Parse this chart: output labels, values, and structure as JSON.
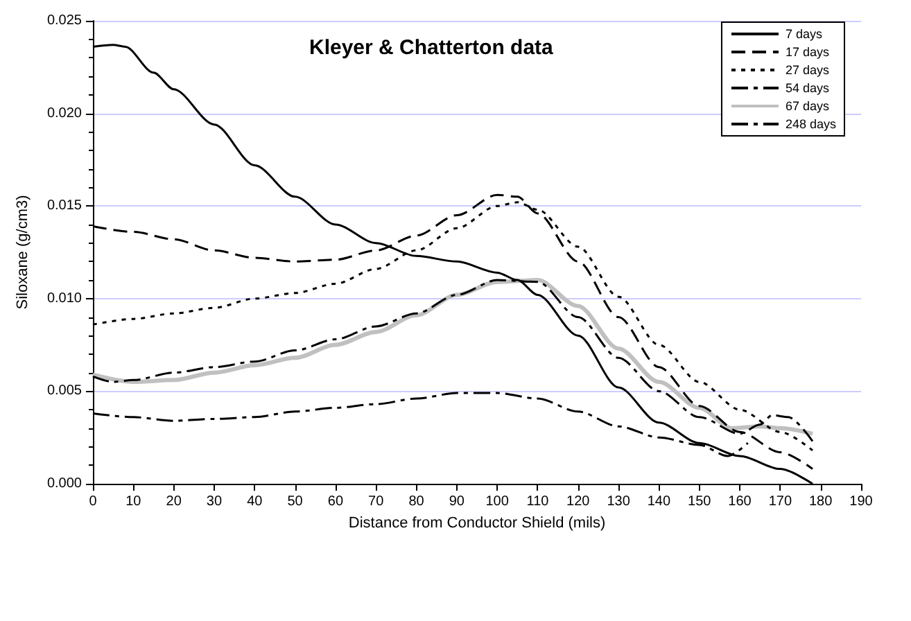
{
  "chart_data": {
    "type": "line",
    "title": "Kleyer & Chatterton data",
    "xlabel": "Distance from Conductor Shield (mils)",
    "ylabel": "Siloxane (g/cm3)",
    "xlim": [
      0,
      190
    ],
    "xticks": [
      0,
      10,
      20,
      30,
      40,
      50,
      60,
      70,
      80,
      90,
      100,
      110,
      120,
      130,
      140,
      150,
      160,
      170,
      180,
      190
    ],
    "ylim": [
      0,
      0.025
    ],
    "yticks": [
      {
        "value": 0,
        "label": "0.000"
      },
      {
        "value": 0.005,
        "label": "0.005"
      },
      {
        "value": 0.01,
        "label": "0.010"
      },
      {
        "value": 0.015,
        "label": "0.015"
      },
      {
        "value": 0.02,
        "label": "0.020"
      },
      {
        "value": 0.025,
        "label": "0.025"
      }
    ],
    "grid": "y",
    "legend": "top right",
    "marker": "none",
    "series": [
      {
        "name": "7 days",
        "color": "#000000",
        "line_style": "solid",
        "x": [
          0,
          5,
          8,
          15,
          20,
          30,
          40,
          50,
          60,
          70,
          80,
          90,
          100,
          105,
          110,
          120,
          130,
          140,
          150,
          160,
          170,
          178
        ],
        "values": [
          0.0236,
          0.0237,
          0.0236,
          0.0222,
          0.0213,
          0.0194,
          0.0172,
          0.0155,
          0.014,
          0.013,
          0.0123,
          0.012,
          0.0114,
          0.011,
          0.0102,
          0.008,
          0.0052,
          0.0033,
          0.0022,
          0.0015,
          0.0008,
          0
        ]
      },
      {
        "name": "17 days",
        "color": "#000000",
        "line_style": "dashed",
        "x": [
          0,
          10,
          20,
          30,
          40,
          50,
          60,
          70,
          80,
          90,
          100,
          105,
          110,
          120,
          130,
          140,
          150,
          160,
          170,
          178
        ],
        "values": [
          0.0139,
          0.0136,
          0.0132,
          0.0126,
          0.0122,
          0.012,
          0.0121,
          0.0126,
          0.0134,
          0.0145,
          0.0156,
          0.0155,
          0.0146,
          0.012,
          0.009,
          0.0063,
          0.0042,
          0.0028,
          0.0017,
          0.0008
        ]
      },
      {
        "name": "27 days",
        "color": "#000000",
        "line_style": "dotted",
        "x": [
          0,
          10,
          20,
          30,
          40,
          50,
          60,
          70,
          80,
          90,
          100,
          105,
          110,
          120,
          130,
          140,
          150,
          160,
          170,
          178
        ],
        "values": [
          0.0086,
          0.0089,
          0.0092,
          0.0095,
          0.01,
          0.0103,
          0.0108,
          0.0116,
          0.0126,
          0.0138,
          0.015,
          0.0152,
          0.0148,
          0.0128,
          0.0101,
          0.0075,
          0.0055,
          0.004,
          0.0028,
          0.0018
        ]
      },
      {
        "name": "54 days",
        "color": "#000000",
        "line_style": "dash-dot",
        "x": [
          0,
          5,
          10,
          20,
          30,
          40,
          50,
          60,
          70,
          80,
          90,
          100,
          110,
          120,
          130,
          140,
          150,
          160,
          165,
          168,
          172,
          178
        ],
        "values": [
          0.0058,
          0.0055,
          0.0056,
          0.006,
          0.0063,
          0.0066,
          0.0072,
          0.0078,
          0.0085,
          0.0092,
          0.0102,
          0.011,
          0.0109,
          0.009,
          0.0068,
          0.005,
          0.0036,
          0.0027,
          0.0032,
          0.0037,
          0.0036,
          0.0023
        ]
      },
      {
        "name": "67 days",
        "color": "#c0c0c0",
        "line_style": "solid",
        "x": [
          0,
          10,
          20,
          30,
          40,
          50,
          60,
          70,
          80,
          90,
          100,
          110,
          120,
          130,
          140,
          150,
          158,
          165,
          170,
          178
        ],
        "values": [
          0.0059,
          0.0055,
          0.0056,
          0.006,
          0.0064,
          0.0068,
          0.0075,
          0.0082,
          0.0091,
          0.0102,
          0.0109,
          0.011,
          0.0096,
          0.0073,
          0.0055,
          0.0041,
          0.003,
          0.0031,
          0.003,
          0.0027
        ]
      },
      {
        "name": "248 days",
        "color": "#000000",
        "line_style": "dash-dot",
        "x": [
          0,
          10,
          20,
          30,
          40,
          50,
          60,
          70,
          80,
          90,
          100,
          110,
          120,
          130,
          140,
          150,
          157,
          162
        ],
        "values": [
          0.0038,
          0.0036,
          0.0034,
          0.0035,
          0.0036,
          0.0039,
          0.0041,
          0.0043,
          0.0046,
          0.0049,
          0.0049,
          0.0046,
          0.0039,
          0.0031,
          0.0025,
          0.0021,
          0.0015,
          0.0022
        ]
      }
    ]
  }
}
